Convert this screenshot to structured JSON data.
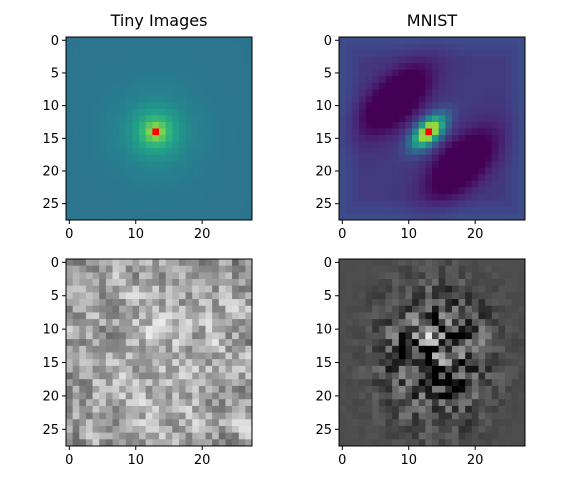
{
  "chart_data": {
    "type": "heatmap",
    "figure": "2x2 grid of 28x28 image panels",
    "panels": [
      {
        "id": "tiny-top",
        "title": "Tiny Images",
        "colormap": "viridis",
        "content": "radially symmetric spatial correlation map, peak at pixel (13,14) marked red",
        "marker": {
          "x": 13,
          "y": 14,
          "color": "#ff0000"
        },
        "xlim": [
          0,
          27
        ],
        "ylim": [
          27,
          0
        ],
        "xticks": [
          "0",
          "10",
          "20"
        ],
        "yticks": [
          "0",
          "5",
          "10",
          "15",
          "20",
          "25"
        ]
      },
      {
        "id": "mnist-top",
        "title": "MNIST",
        "colormap": "viridis",
        "content": "diagonal correlation map with negative lobes, peak at pixel (13,14) marked red",
        "marker": {
          "x": 13,
          "y": 14,
          "color": "#ff0000"
        },
        "xlim": [
          0,
          27
        ],
        "ylim": [
          27,
          0
        ],
        "xticks": [
          "0",
          "10",
          "20"
        ],
        "yticks": [
          "0",
          "5",
          "10",
          "15",
          "20",
          "25"
        ]
      },
      {
        "id": "tiny-bottom",
        "title": "",
        "colormap": "gray",
        "content": "noisy grayscale 28x28 sample",
        "xlim": [
          0,
          27
        ],
        "ylim": [
          27,
          0
        ],
        "xticks": [
          "0",
          "10",
          "20"
        ],
        "yticks": [
          "0",
          "5",
          "10",
          "15",
          "20",
          "25"
        ]
      },
      {
        "id": "mnist-bottom",
        "title": "",
        "colormap": "gray",
        "content": "grayscale 28x28 sample concentrated in center on mid-gray background",
        "xlim": [
          0,
          27
        ],
        "ylim": [
          27,
          0
        ],
        "xticks": [
          "0",
          "10",
          "20"
        ],
        "yticks": [
          "0",
          "5",
          "10",
          "15",
          "20",
          "25"
        ]
      }
    ]
  }
}
